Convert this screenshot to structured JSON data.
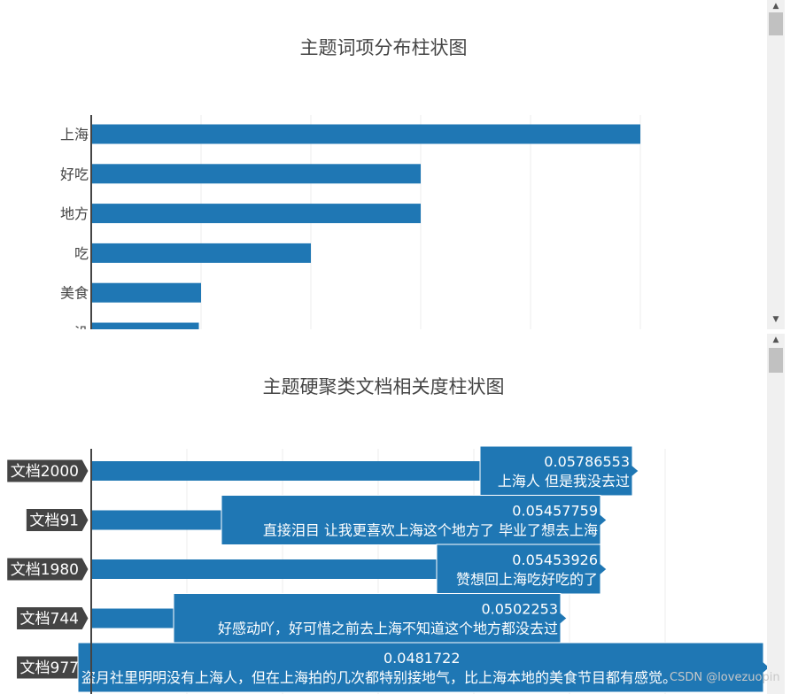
{
  "chart_data": [
    {
      "type": "bar",
      "orientation": "horizontal",
      "title": "主题词项分布柱状图",
      "categories": [
        "上海",
        "好吃",
        "地方",
        "吃",
        "美食",
        "没"
      ],
      "values": [
        25,
        15,
        15,
        10,
        5,
        4.9
      ],
      "xlim": [
        0,
        27
      ],
      "grid": true,
      "color": "#1f77b4"
    },
    {
      "type": "bar",
      "orientation": "horizontal",
      "title": "主题硬聚类文档相关度柱状图",
      "categories": [
        "文档2000",
        "文档91",
        "文档1980",
        "文档744",
        "文档977"
      ],
      "values": [
        0.05786553,
        0.05457759,
        0.05453926,
        0.0502253,
        0.0481722
      ],
      "hover_text": [
        "上海人 但是我没去过",
        "直接泪目 让我更喜欢上海这个地方了 毕业了想去上海",
        "赞想回上海吃好吃的了",
        "好感动吖，好可惜之前去上海不知道这个地方都没去过",
        "盗月社里明明没有上海人，但在上海拍的几次都特别接地气，比上海本地的美食节目都有感觉。"
      ],
      "value_labels": [
        "0.05786553",
        "0.05457759",
        "0.05453926",
        "0.0502253",
        "0.0481722"
      ],
      "grid": true,
      "color": "#1f77b4"
    }
  ],
  "toolbar": {
    "icons": [
      "camera-icon",
      "zoom-icon",
      "pan-icon",
      "box-select-icon",
      "lasso-select-icon",
      "zoom-in-icon",
      "zoom-out-icon",
      "autoscale-icon",
      "reset-axes-icon",
      "spike-lines-icon",
      "hover-closest-icon",
      "hover-compare-icon",
      "plotly-logo-icon"
    ]
  },
  "watermark": "CSDN @lovezuopin"
}
